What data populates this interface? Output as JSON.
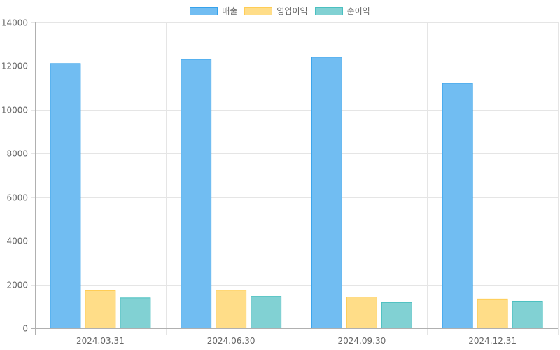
{
  "chart_data": {
    "type": "bar",
    "categories": [
      "2024.03.31",
      "2024.06.30",
      "2024.09.30",
      "2024.12.31"
    ],
    "series": [
      {
        "name": "매출",
        "values": [
          12130,
          12320,
          12420,
          11230
        ]
      },
      {
        "name": "영업이익",
        "values": [
          1730,
          1750,
          1440,
          1350
        ]
      },
      {
        "name": "순이익",
        "values": [
          1400,
          1470,
          1190,
          1250
        ]
      }
    ],
    "ylim": [
      0,
      14000
    ],
    "yticks": [
      0,
      2000,
      4000,
      6000,
      8000,
      10000,
      12000,
      14000
    ],
    "grid": true,
    "legend_position": "top-center",
    "xlabel": "",
    "ylabel": "",
    "colors": {
      "series_fill": [
        "#71bdf2",
        "#ffdd88",
        "#81d1d3"
      ],
      "series_border": [
        "#36a2eb",
        "#ffcd56",
        "#4bc0c0"
      ],
      "grid": "#e5e5e5",
      "axis": "#b0b0b0",
      "text": "#666666"
    }
  }
}
